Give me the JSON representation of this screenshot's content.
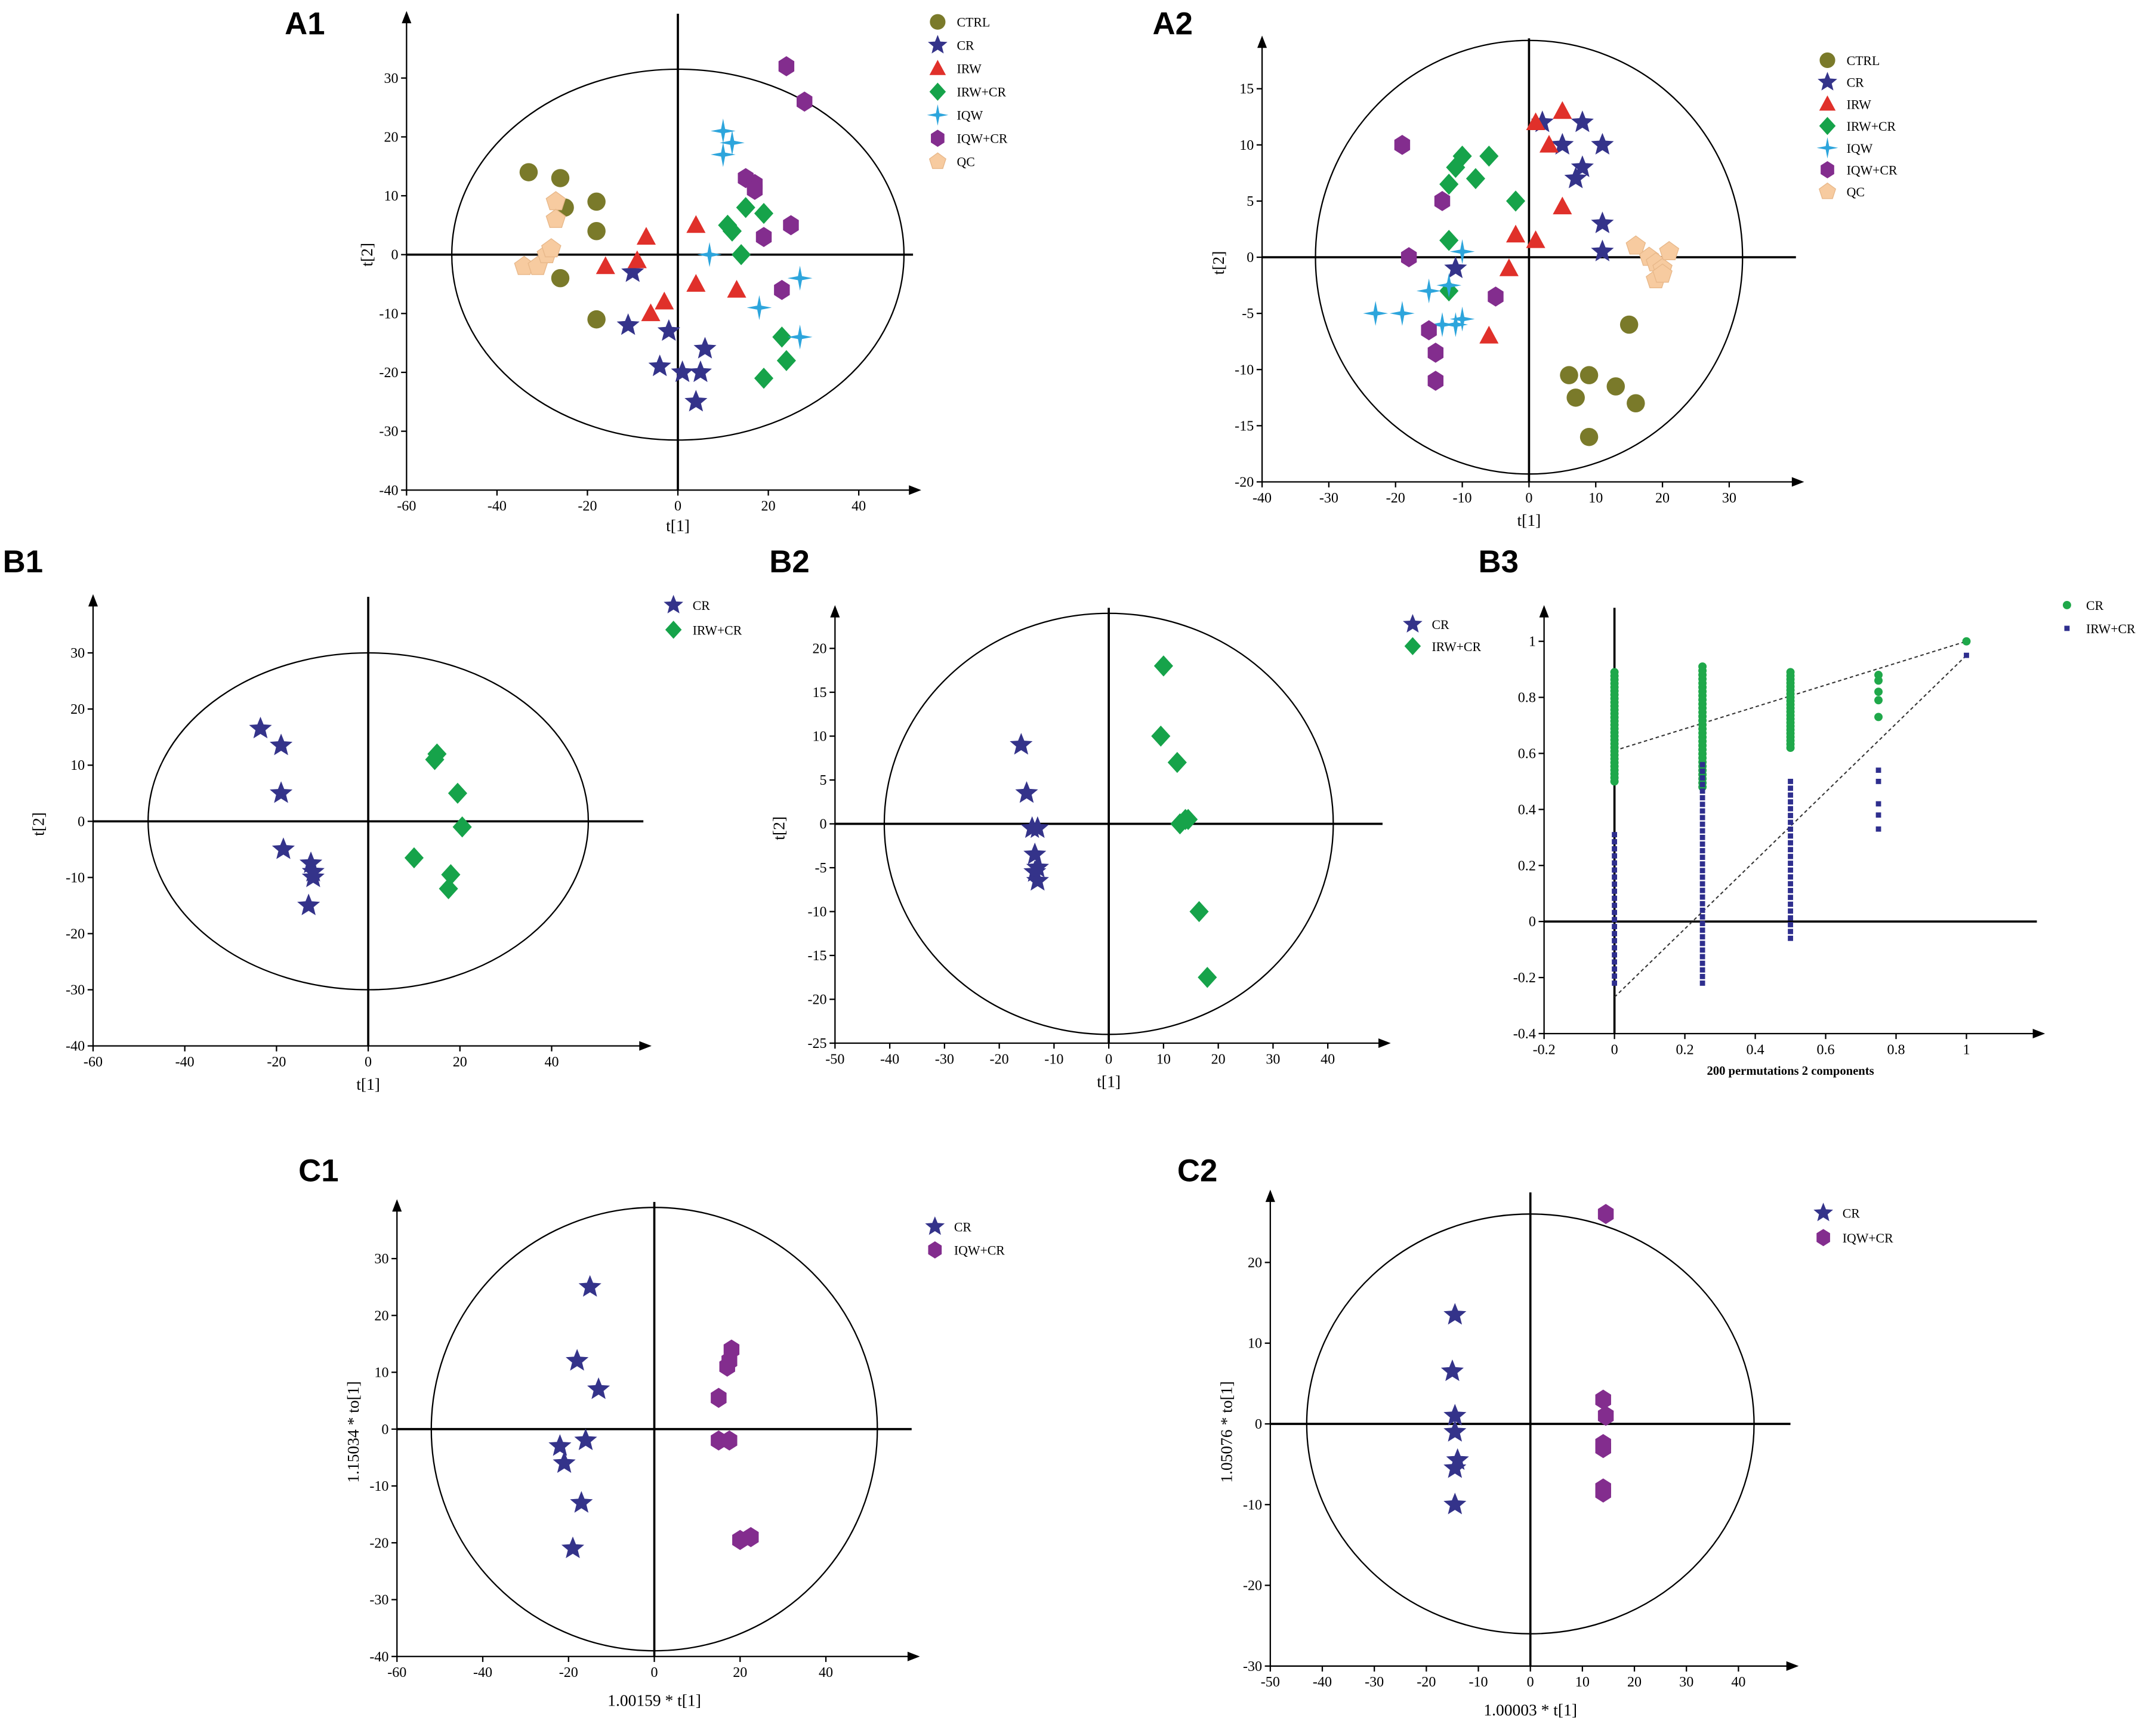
{
  "colors": {
    "CTRL": "#7a7a2a",
    "CR": "#34338a",
    "IRW": "#e0302a",
    "IRW+CR": "#16a34a",
    "IQW": "#2da5dc",
    "IQW+CR": "#832d8e",
    "QC": "#f7cba0",
    "B3_CR": "#1fa84a",
    "B3_IRW+CR": "#2e2e8e"
  },
  "markers": {
    "CTRL": "circle-icon",
    "CR": "star-icon",
    "IRW": "triangle-icon",
    "IRW+CR": "diamond-icon",
    "IQW": "four-point-star-icon",
    "IQW+CR": "hexagon-icon",
    "QC": "pentagon-icon"
  },
  "chart_data": [
    {
      "id": "A1",
      "label": "A1",
      "type": "scatter",
      "xlabel": "t[1]",
      "ylabel": "t[2]",
      "xlim": [
        -60,
        52
      ],
      "ylim": [
        -40,
        40
      ],
      "xticks": [
        -60,
        -40,
        -20,
        0,
        20,
        40
      ],
      "yticks": [
        -40,
        -30,
        -20,
        -10,
        0,
        10,
        20,
        30
      ],
      "ellipse": {
        "rx": 50,
        "ry": 31.5
      },
      "legend": [
        "CTRL",
        "CR",
        "IRW",
        "IRW+CR",
        "IQW",
        "IQW+CR",
        "QC"
      ],
      "series": [
        {
          "name": "CTRL",
          "points": [
            [
              -33,
              14
            ],
            [
              -26,
              13
            ],
            [
              -18,
              9
            ],
            [
              -25,
              8
            ],
            [
              -18,
              4
            ],
            [
              -26,
              -4
            ],
            [
              -18,
              -11
            ]
          ]
        },
        {
          "name": "CR",
          "points": [
            [
              -10,
              -3
            ],
            [
              -11,
              -12
            ],
            [
              -2,
              -13
            ],
            [
              -4,
              -19
            ],
            [
              1,
              -20
            ],
            [
              5,
              -20
            ],
            [
              6,
              -16
            ],
            [
              4,
              -25
            ]
          ]
        },
        {
          "name": "IRW",
          "points": [
            [
              -16,
              -2
            ],
            [
              -9,
              -1
            ],
            [
              -7,
              3
            ],
            [
              -3,
              -8
            ],
            [
              -6,
              -10
            ],
            [
              4,
              5
            ],
            [
              4,
              -5
            ],
            [
              13,
              -6
            ]
          ]
        },
        {
          "name": "IRW+CR",
          "points": [
            [
              11,
              5
            ],
            [
              12,
              4
            ],
            [
              15,
              8
            ],
            [
              19,
              7
            ],
            [
              14,
              0
            ],
            [
              23,
              -14
            ],
            [
              24,
              -18
            ],
            [
              19,
              -21
            ]
          ]
        },
        {
          "name": "IQW",
          "points": [
            [
              10,
              21
            ],
            [
              12,
              19
            ],
            [
              10,
              17
            ],
            [
              7,
              0
            ],
            [
              18,
              -9
            ],
            [
              27,
              -4
            ],
            [
              27,
              -14
            ]
          ]
        },
        {
          "name": "IQW+CR",
          "points": [
            [
              24,
              32
            ],
            [
              28,
              26
            ],
            [
              15,
              13
            ],
            [
              17,
              12
            ],
            [
              17,
              11
            ],
            [
              25,
              5
            ],
            [
              19,
              3
            ],
            [
              23,
              -6
            ]
          ]
        },
        {
          "name": "QC",
          "points": [
            [
              -34,
              -2
            ],
            [
              -31,
              -2
            ],
            [
              -29,
              0
            ],
            [
              -28,
              1
            ],
            [
              -27,
              9
            ],
            [
              -27,
              6
            ]
          ]
        }
      ]
    },
    {
      "id": "A2",
      "label": "A2",
      "type": "scatter",
      "xlabel": "t[1]",
      "ylabel": "t[2]",
      "xlim": [
        -40,
        40
      ],
      "ylim": [
        -20,
        19
      ],
      "xticks": [
        -40,
        -30,
        -20,
        -10,
        0,
        10,
        20,
        30
      ],
      "yticks": [
        -20,
        -15,
        -10,
        -5,
        0,
        5,
        10,
        15
      ],
      "ellipse": {
        "rx": 32,
        "ry": 19.3
      },
      "legend": [
        "CTRL",
        "CR",
        "IRW",
        "IRW+CR",
        "IQW",
        "IQW+CR",
        "QC"
      ],
      "series": [
        {
          "name": "CTRL",
          "points": [
            [
              15,
              -6
            ],
            [
              6,
              -10.5
            ],
            [
              9,
              -10.5
            ],
            [
              7,
              -12.5
            ],
            [
              13,
              -11.5
            ],
            [
              16,
              -13
            ],
            [
              9,
              -16
            ]
          ]
        },
        {
          "name": "CR",
          "points": [
            [
              2,
              12
            ],
            [
              5,
              10
            ],
            [
              8,
              12
            ],
            [
              11,
              10
            ],
            [
              8,
              8
            ],
            [
              7,
              7
            ],
            [
              11,
              3
            ],
            [
              11,
              0.5
            ],
            [
              -11,
              -1
            ]
          ]
        },
        {
          "name": "IRW",
          "points": [
            [
              1,
              12
            ],
            [
              3,
              10
            ],
            [
              5,
              13
            ],
            [
              5,
              4.5
            ],
            [
              -2,
              2
            ],
            [
              1,
              1.5
            ],
            [
              -3,
              -1
            ],
            [
              -6,
              -7
            ]
          ]
        },
        {
          "name": "IRW+CR",
          "points": [
            [
              -10,
              9
            ],
            [
              -6,
              9
            ],
            [
              -11,
              8
            ],
            [
              -12,
              6.5
            ],
            [
              -8,
              7
            ],
            [
              -2,
              5
            ],
            [
              -12,
              1.5
            ],
            [
              -12,
              -3
            ]
          ]
        },
        {
          "name": "IQW",
          "points": [
            [
              -23,
              -5
            ],
            [
              -19,
              -5
            ],
            [
              -15,
              -3
            ],
            [
              -12,
              -2.5
            ],
            [
              -10,
              0.5
            ],
            [
              -11,
              -6
            ],
            [
              -10,
              -5.5
            ],
            [
              -13,
              -6
            ]
          ]
        },
        {
          "name": "IQW+CR",
          "points": [
            [
              -19,
              10
            ],
            [
              -13,
              5
            ],
            [
              -18,
              0
            ],
            [
              -5,
              -3.5
            ],
            [
              -15,
              -6.5
            ],
            [
              -14,
              -8.5
            ],
            [
              -14,
              -11
            ]
          ]
        },
        {
          "name": "QC",
          "points": [
            [
              16,
              1
            ],
            [
              18,
              0
            ],
            [
              19,
              -0.5
            ],
            [
              20,
              -1
            ],
            [
              21,
              0.5
            ],
            [
              19,
              -2
            ],
            [
              20,
              -1.5
            ]
          ]
        }
      ]
    },
    {
      "id": "B1",
      "label": "B1",
      "type": "scatter",
      "xlabel": "t[1]",
      "ylabel": "t[2]",
      "xlim": [
        -60,
        60
      ],
      "ylim": [
        -40,
        39
      ],
      "xticks": [
        -60,
        -40,
        -20,
        0,
        20,
        40
      ],
      "yticks": [
        -40,
        -30,
        -20,
        -10,
        0,
        10,
        20,
        30
      ],
      "ellipse": {
        "rx": 48,
        "ry": 30
      },
      "legend": [
        "CR",
        "IRW+CR"
      ],
      "series": [
        {
          "name": "CR",
          "points": [
            [
              -23.5,
              16.5
            ],
            [
              -19,
              13.5
            ],
            [
              -19,
              5
            ],
            [
              -18.5,
              -5
            ],
            [
              -12.5,
              -7.5
            ],
            [
              -12,
              -9
            ],
            [
              -12,
              -10
            ],
            [
              -13,
              -15
            ]
          ]
        },
        {
          "name": "IRW+CR",
          "points": [
            [
              15,
              12
            ],
            [
              14.5,
              11
            ],
            [
              19.5,
              5
            ],
            [
              20.5,
              -1
            ],
            [
              10,
              -6.5
            ],
            [
              18,
              -9.5
            ],
            [
              17.5,
              -12
            ]
          ]
        }
      ]
    },
    {
      "id": "B2",
      "label": "B2",
      "type": "scatter",
      "xlabel": "t[1]",
      "ylabel": "t[2]",
      "xlim": [
        -50,
        50
      ],
      "ylim": [
        -25,
        24
      ],
      "xticks": [
        -50,
        -40,
        -30,
        -20,
        -10,
        0,
        10,
        20,
        30,
        40
      ],
      "yticks": [
        -25,
        -20,
        -15,
        -10,
        -5,
        0,
        5,
        10,
        15,
        20
      ],
      "ellipse": {
        "rx": 41,
        "ry": 24
      },
      "legend": [
        "CR",
        "IRW+CR"
      ],
      "series": [
        {
          "name": "CR",
          "points": [
            [
              -16,
              9
            ],
            [
              -15,
              3.5
            ],
            [
              -14,
              -0.5
            ],
            [
              -13,
              -0.5
            ],
            [
              -13.5,
              -3.5
            ],
            [
              -13,
              -5
            ],
            [
              -13.5,
              -5.5
            ],
            [
              -13,
              -6.5
            ]
          ]
        },
        {
          "name": "IRW+CR",
          "points": [
            [
              10,
              18
            ],
            [
              9.5,
              10
            ],
            [
              12.5,
              7
            ],
            [
              13,
              0
            ],
            [
              14,
              0.5
            ],
            [
              14.5,
              0.5
            ],
            [
              16.5,
              -10
            ],
            [
              18,
              -17.5
            ]
          ]
        }
      ]
    },
    {
      "id": "B3",
      "label": "B3",
      "type": "scatter",
      "xlabel": "200 permutations 2 components",
      "ylabel": "",
      "xlim": [
        -0.2,
        1.2
      ],
      "ylim": [
        -0.4,
        1.1
      ],
      "xticks": [
        -0.2,
        0,
        0.2,
        0.4,
        0.6,
        0.8,
        1
      ],
      "yticks": [
        -0.4,
        -0.2,
        0,
        0.2,
        0.4,
        0.6,
        0.8,
        1
      ],
      "legend": [
        "CR",
        "IRW+CR"
      ],
      "trendlines": [
        {
          "name": "CR",
          "from": [
            0,
            0.61
          ],
          "to": [
            1,
            1.0
          ]
        },
        {
          "name": "IRW+CR",
          "from": [
            0,
            -0.27
          ],
          "to": [
            1,
            0.95
          ]
        }
      ],
      "bands": [
        {
          "name": "CR",
          "x": 0,
          "ymin": 0.5,
          "ymax": 0.89,
          "n": 30
        },
        {
          "name": "CR",
          "x": 0.25,
          "ymin": 0.48,
          "ymax": 0.91,
          "n": 30
        },
        {
          "name": "CR",
          "x": 0.5,
          "ymin": 0.62,
          "ymax": 0.89,
          "n": 22
        },
        {
          "name": "IRW+CR",
          "x": 0,
          "ymin": -0.22,
          "ymax": 0.31,
          "n": 22
        },
        {
          "name": "IRW+CR",
          "x": 0.25,
          "ymin": -0.22,
          "ymax": 0.56,
          "n": 34
        },
        {
          "name": "IRW+CR",
          "x": 0.5,
          "ymin": -0.06,
          "ymax": 0.5,
          "n": 24
        }
      ],
      "series": [
        {
          "name": "CR",
          "points": [
            [
              0.75,
              0.88
            ],
            [
              0.75,
              0.86
            ],
            [
              0.75,
              0.82
            ],
            [
              0.75,
              0.79
            ],
            [
              0.75,
              0.73
            ],
            [
              1,
              1.0
            ]
          ]
        },
        {
          "name": "IRW+CR",
          "points": [
            [
              0.75,
              0.54
            ],
            [
              0.75,
              0.5
            ],
            [
              0.75,
              0.42
            ],
            [
              0.75,
              0.38
            ],
            [
              0.75,
              0.33
            ],
            [
              1,
              0.95
            ]
          ]
        }
      ]
    },
    {
      "id": "C1",
      "label": "C1",
      "type": "scatter",
      "xlabel": "1.00159 * t[1]",
      "ylabel": "1.15034 * to[1]",
      "xlim": [
        -60,
        60
      ],
      "ylim": [
        -40,
        39
      ],
      "xticks": [
        -60,
        -40,
        -20,
        0,
        20,
        40
      ],
      "yticks": [
        -40,
        -30,
        -20,
        -10,
        0,
        10,
        20,
        30
      ],
      "ellipse": {
        "rx": 52,
        "ry": 39
      },
      "legend": [
        "CR",
        "IQW+CR"
      ],
      "series": [
        {
          "name": "CR",
          "points": [
            [
              -15,
              25
            ],
            [
              -18,
              12
            ],
            [
              -13,
              7
            ],
            [
              -16,
              -2
            ],
            [
              -22,
              -3
            ],
            [
              -21,
              -6
            ],
            [
              -17,
              -13
            ],
            [
              -19,
              -21
            ]
          ]
        },
        {
          "name": "IQW+CR",
          "points": [
            [
              18,
              14
            ],
            [
              17.5,
              12
            ],
            [
              17,
              11
            ],
            [
              15,
              5.5
            ],
            [
              15,
              -2
            ],
            [
              17.5,
              -2
            ],
            [
              20,
              -19.5
            ],
            [
              22.5,
              -19
            ]
          ]
        }
      ]
    },
    {
      "id": "C2",
      "label": "C2",
      "type": "scatter",
      "xlabel": "1.00003 * t[1]",
      "ylabel": "1.05076 * to[1]",
      "xlim": [
        -50,
        50
      ],
      "ylim": [
        -30,
        28
      ],
      "xticks": [
        -50,
        -40,
        -30,
        -20,
        -10,
        0,
        10,
        20,
        30,
        40
      ],
      "yticks": [
        -30,
        -20,
        -10,
        0,
        10,
        20
      ],
      "ellipse": {
        "rx": 43,
        "ry": 26
      },
      "legend": [
        "CR",
        "IQW+CR"
      ],
      "series": [
        {
          "name": "CR",
          "points": [
            [
              -14.5,
              13.5
            ],
            [
              -15,
              6.5
            ],
            [
              -14.5,
              1
            ],
            [
              -14.5,
              -1
            ],
            [
              -14,
              -4.5
            ],
            [
              -14.5,
              -5.5
            ],
            [
              -14.5,
              -10
            ]
          ]
        },
        {
          "name": "IQW+CR",
          "points": [
            [
              14.5,
              26
            ],
            [
              14,
              3
            ],
            [
              14.5,
              1
            ],
            [
              14,
              -2.5
            ],
            [
              14,
              -3
            ],
            [
              14,
              -8
            ],
            [
              14,
              -8.5
            ]
          ]
        }
      ]
    }
  ]
}
